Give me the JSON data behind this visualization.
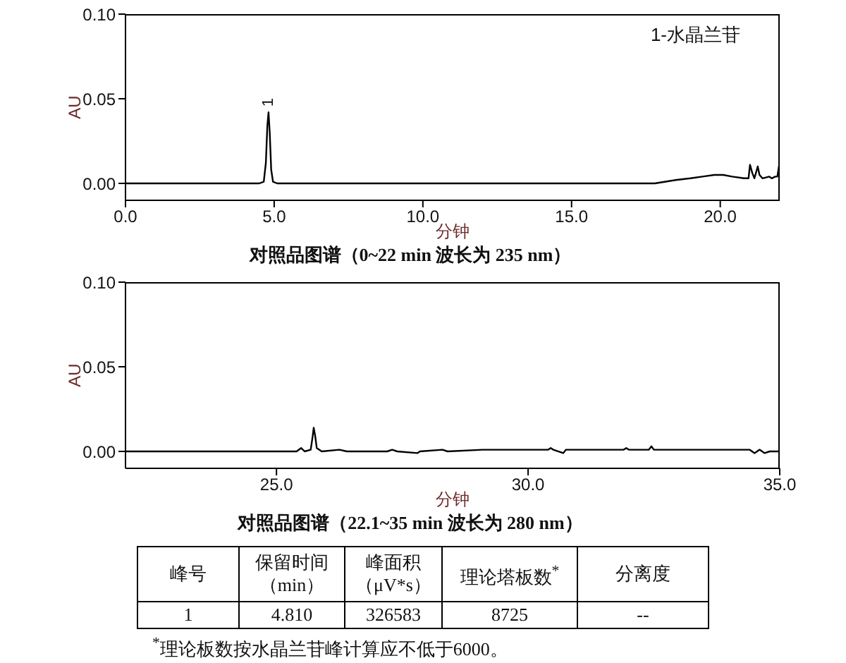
{
  "chart_data": [
    {
      "type": "line",
      "title": "对照品图谱（0~22 min 波长为 235 nm）",
      "xlabel": "分钟",
      "ylabel": "AU",
      "marker": "none",
      "x": [
        0,
        4.5,
        4.65,
        4.72,
        4.77,
        4.81,
        4.85,
        4.9,
        4.96,
        5.1,
        17.8,
        18.5,
        19.0,
        19.4,
        19.8,
        20.1,
        20.4,
        20.8,
        20.95,
        21.0,
        21.08,
        21.15,
        21.26,
        21.32,
        21.42,
        21.65,
        21.73,
        21.85,
        21.92,
        22.0
      ],
      "series": [
        {
          "color": "#000000",
          "values": [
            0,
            0,
            0.001,
            0.012,
            0.034,
            0.042,
            0.03,
            0.008,
            0.001,
            0,
            0,
            0.002,
            0.003,
            0.004,
            0.005,
            0.005,
            0.004,
            0.003,
            0.003,
            0.011,
            0.006,
            0.003,
            0.01,
            0.005,
            0.003,
            0.004,
            0.003,
            0.004,
            0.004,
            0.013
          ]
        }
      ],
      "xlim": [
        0,
        22
      ],
      "ylim": [
        -0.01,
        0.1
      ],
      "xticks": [
        {
          "value": 0,
          "label": "0.0"
        },
        {
          "value": 5,
          "label": "5.0"
        },
        {
          "value": 10,
          "label": "10.0"
        },
        {
          "value": 15,
          "label": "15.0"
        },
        {
          "value": 20,
          "label": "20.0"
        }
      ],
      "yticks": [
        {
          "value": 0,
          "label": "0.00"
        },
        {
          "value": 0.05,
          "label": "0.05"
        },
        {
          "value": 0.1,
          "label": "0.10"
        }
      ],
      "annotations": [
        {
          "text": "1",
          "x": 4.81,
          "y": 0.042
        },
        "1-水晶兰苷"
      ]
    },
    {
      "type": "line",
      "title": "对照品图谱（22.1~35 min 波长为 280 nm）",
      "xlabel": "分钟",
      "ylabel": "AU",
      "marker": "none",
      "x": [
        22,
        24.4,
        25.4,
        25.49,
        25.56,
        25.68,
        25.72,
        25.74,
        25.77,
        25.8,
        25.9,
        26.25,
        26.4,
        27.2,
        27.3,
        27.4,
        27.8,
        27.85,
        28.3,
        28.4,
        29.1,
        30.4,
        30.45,
        30.5,
        30.7,
        30.75,
        31.9,
        31.95,
        32.0,
        32.4,
        32.45,
        32.5,
        34.4,
        34.5,
        34.6,
        34.7,
        34.8,
        35
      ],
      "series": [
        {
          "color": "#000000",
          "values": [
            0,
            0,
            0,
            0.002,
            0,
            0.001,
            0.009,
            0.014,
            0.009,
            0.002,
            0,
            0.001,
            0,
            0,
            0.001,
            0,
            -0.001,
            0,
            0.001,
            0,
            0.001,
            0.001,
            0.002,
            0.001,
            -0.001,
            0.001,
            0.001,
            0.002,
            0.001,
            0.001,
            0.003,
            0.001,
            0.001,
            -0.001,
            0.001,
            -0.001,
            0,
            0
          ]
        }
      ],
      "xlim": [
        22,
        35
      ],
      "ylim": [
        -0.01,
        0.1
      ],
      "xticks": [
        {
          "value": 25,
          "label": "25.0"
        },
        {
          "value": 30,
          "label": "30.0"
        },
        {
          "value": 35,
          "label": "35.0"
        }
      ],
      "yticks": [
        {
          "value": 0,
          "label": "0.00"
        },
        {
          "value": 0.05,
          "label": "0.05"
        },
        {
          "value": 0.1,
          "label": "0.10"
        }
      ]
    },
    {
      "type": "other",
      "annotations": [
        "峰号",
        "保留时间（min）",
        "峰面积（μV*s）",
        "理论塔板数$^{*}$",
        "分离度",
        "1",
        "4.810",
        "326583",
        "8725",
        "--",
        "$^{*}$理论板数按水晶兰苷峰计算应不低于6000。"
      ]
    }
  ]
}
